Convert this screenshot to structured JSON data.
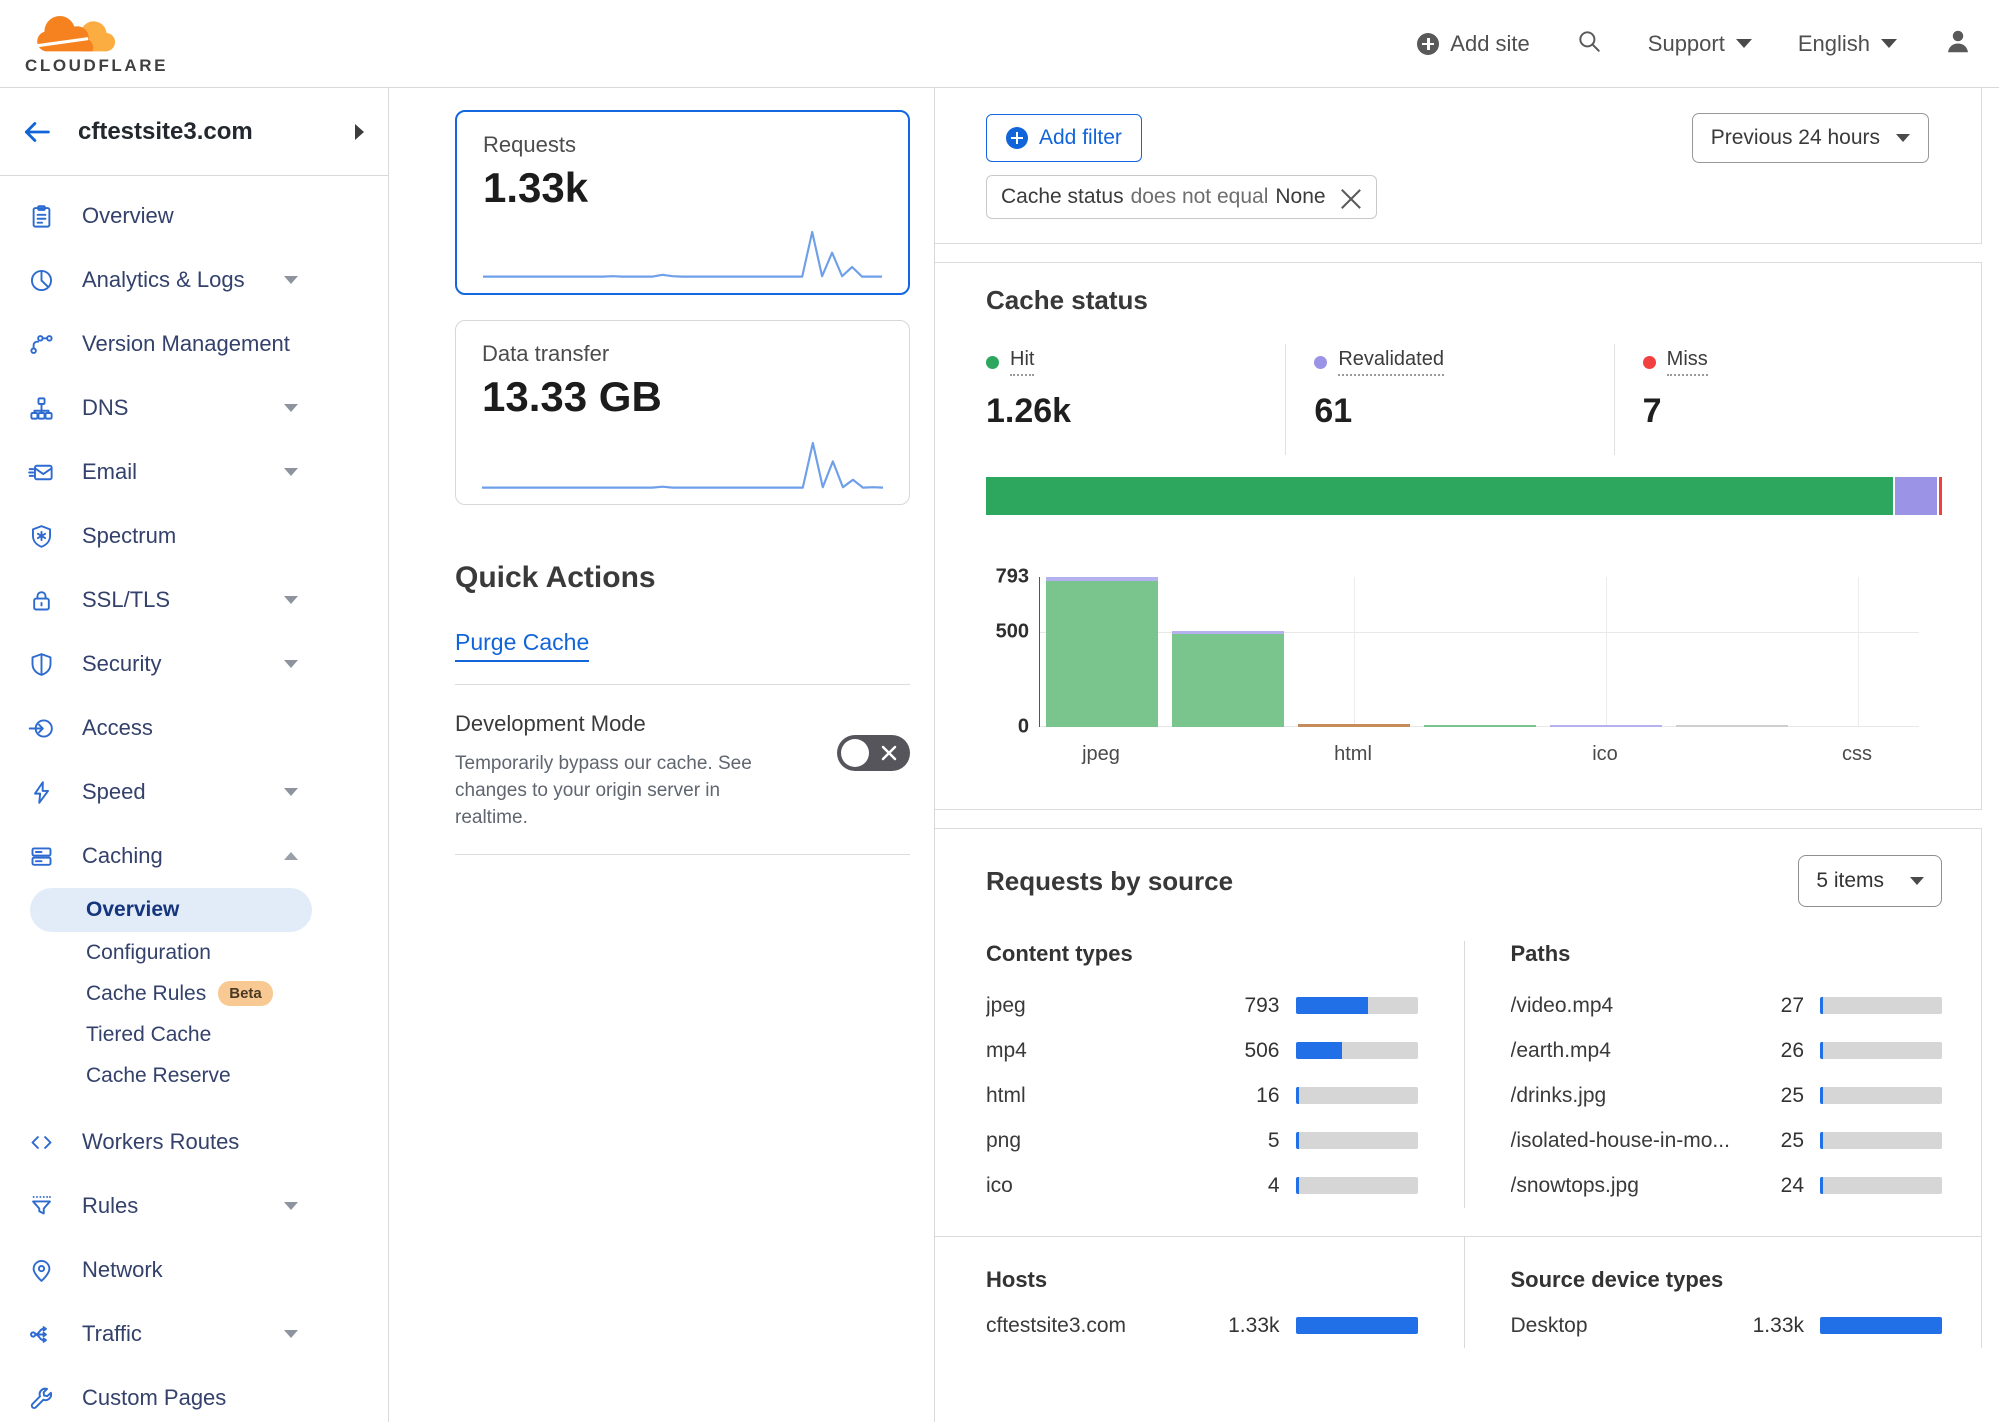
{
  "header": {
    "brand": "CLOUDFLARE",
    "add_site_label": "Add site",
    "support_label": "Support",
    "language_label": "English"
  },
  "sidebar": {
    "site_name": "cftestsite3.com",
    "items": [
      {
        "label": "Overview",
        "icon": "clipboard"
      },
      {
        "label": "Analytics & Logs",
        "icon": "pie",
        "caret": "down"
      },
      {
        "label": "Version Management",
        "icon": "branch"
      },
      {
        "label": "DNS",
        "icon": "dns",
        "caret": "down"
      },
      {
        "label": "Email",
        "icon": "email",
        "caret": "down"
      },
      {
        "label": "Spectrum",
        "icon": "spectrum"
      },
      {
        "label": "SSL/TLS",
        "icon": "lock",
        "caret": "down"
      },
      {
        "label": "Security",
        "icon": "shield",
        "caret": "down"
      },
      {
        "label": "Access",
        "icon": "access"
      },
      {
        "label": "Speed",
        "icon": "bolt",
        "caret": "down"
      },
      {
        "label": "Caching",
        "icon": "server",
        "caret": "up",
        "children": [
          {
            "label": "Overview",
            "active": true
          },
          {
            "label": "Configuration"
          },
          {
            "label": "Cache Rules",
            "badge": "Beta"
          },
          {
            "label": "Tiered Cache"
          },
          {
            "label": "Cache Reserve"
          }
        ]
      },
      {
        "label": "Workers Routes",
        "icon": "code"
      },
      {
        "label": "Rules",
        "icon": "funnel",
        "caret": "down"
      },
      {
        "label": "Network",
        "icon": "pin"
      },
      {
        "label": "Traffic",
        "icon": "share",
        "caret": "down"
      },
      {
        "label": "Custom Pages",
        "icon": "wrench"
      }
    ]
  },
  "overview_cards": {
    "requests": {
      "label": "Requests",
      "value": "1.33k",
      "spark": [
        3,
        3,
        3,
        3,
        3,
        3,
        3,
        3,
        3,
        3,
        3,
        3,
        3,
        4,
        3,
        3,
        3,
        3,
        7,
        4,
        3,
        3,
        3,
        3,
        3,
        3,
        3,
        3,
        3,
        3,
        3,
        3,
        3,
        100,
        4,
        55,
        4,
        24,
        3,
        3,
        3
      ]
    },
    "data_transfer": {
      "label": "Data transfer",
      "value": "13.33 GB",
      "spark": [
        3,
        3,
        3,
        3,
        3,
        3,
        3,
        3,
        3,
        3,
        3,
        3,
        3,
        3,
        3,
        3,
        3,
        3,
        5,
        3,
        3,
        3,
        3,
        3,
        3,
        3,
        3,
        3,
        3,
        3,
        3,
        3,
        3,
        100,
        4,
        60,
        4,
        20,
        3,
        4,
        3
      ]
    }
  },
  "quick_actions": {
    "title": "Quick Actions",
    "purge_cache_label": "Purge Cache",
    "development_mode": {
      "title": "Development Mode",
      "description": "Temporarily bypass our cache. See changes to your origin server in realtime.",
      "state": "off"
    }
  },
  "filter_bar": {
    "add_filter_label": "Add filter",
    "chip": {
      "field": "Cache status",
      "operator": "does not equal",
      "value": "None"
    },
    "time_range": "Previous 24 hours"
  },
  "cache_status": {
    "title": "Cache status",
    "legend": [
      {
        "label": "Hit",
        "value": "1.26k",
        "color": "#2da65e"
      },
      {
        "label": "Revalidated",
        "value": "61",
        "color": "#9b94e6"
      },
      {
        "label": "Miss",
        "value": "7",
        "color": "#f23f3f"
      }
    ]
  },
  "requests_by_source": {
    "title": "Requests by source",
    "items_select": "5 items",
    "content_types": {
      "title": "Content types",
      "total": 1328,
      "rows": [
        {
          "label": "jpeg",
          "value": 793,
          "display": "793"
        },
        {
          "label": "mp4",
          "value": 506,
          "display": "506"
        },
        {
          "label": "html",
          "value": 16,
          "display": "16"
        },
        {
          "label": "png",
          "value": 5,
          "display": "5"
        },
        {
          "label": "ico",
          "value": 4,
          "display": "4"
        }
      ]
    },
    "paths": {
      "title": "Paths",
      "total": 1328,
      "rows": [
        {
          "label": "/video.mp4",
          "value": 27,
          "display": "27"
        },
        {
          "label": "/earth.mp4",
          "value": 26,
          "display": "26"
        },
        {
          "label": "/drinks.jpg",
          "value": 25,
          "display": "25"
        },
        {
          "label": "/isolated-house-in-mo...",
          "value": 25,
          "display": "25"
        },
        {
          "label": "/snowtops.jpg",
          "value": 24,
          "display": "24"
        }
      ]
    },
    "hosts": {
      "title": "Hosts",
      "total": 1328,
      "rows": [
        {
          "label": "cftestsite3.com",
          "value": 1328,
          "display": "1.33k"
        }
      ]
    },
    "device_types": {
      "title": "Source device types",
      "total": 1328,
      "rows": [
        {
          "label": "Desktop",
          "value": 1328,
          "display": "1.33k"
        }
      ]
    }
  },
  "chart_data": [
    {
      "type": "bar",
      "variant": "horizontal-stacked",
      "title": "Cache status",
      "total": 1328,
      "series": [
        {
          "name": "Hit",
          "value": 1260,
          "color": "#2da65e"
        },
        {
          "name": "Revalidated",
          "value": 61,
          "color": "#9b94e6"
        },
        {
          "name": "Miss",
          "value": 7,
          "color": "#f23f3f"
        }
      ]
    },
    {
      "type": "bar",
      "variant": "stacked-columns",
      "ylim": [
        0,
        793
      ],
      "yticks": [
        0,
        500,
        793
      ],
      "grid": true,
      "columns": [
        {
          "tick": "jpeg",
          "segments": [
            {
              "name": "Hit",
              "value": 770,
              "color": "#79c58d"
            },
            {
              "name": "Revalidated",
              "value": 23,
              "color": "#b4b1ee"
            }
          ]
        },
        {
          "tick": "",
          "segments": [
            {
              "name": "Hit",
              "value": 490,
              "color": "#79c58d"
            },
            {
              "name": "Revalidated",
              "value": 16,
              "color": "#b4b1ee"
            }
          ]
        },
        {
          "tick": "html",
          "segments": [
            {
              "name": "other",
              "value": 16,
              "color": "#c58b59"
            }
          ]
        },
        {
          "tick": "",
          "segments": [
            {
              "name": "Hit",
              "value": 5,
              "color": "#79c58d"
            }
          ]
        },
        {
          "tick": "ico",
          "segments": [
            {
              "name": "Revalidated",
              "value": 4,
              "color": "#b4b1ee"
            }
          ]
        },
        {
          "tick": "",
          "segments": [
            {
              "name": "other",
              "value": 2,
              "color": "#cfcfcf"
            }
          ]
        },
        {
          "tick": "css",
          "segments": []
        }
      ]
    }
  ]
}
